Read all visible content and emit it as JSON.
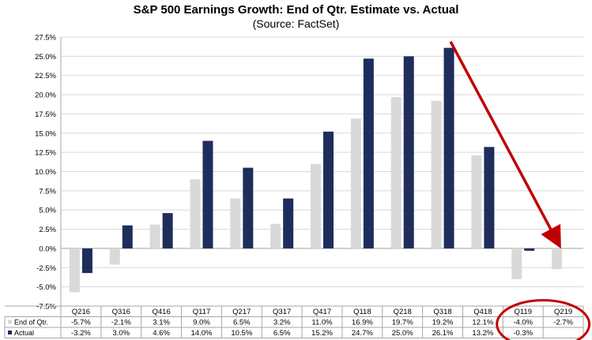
{
  "chart_data": {
    "type": "bar",
    "title": "S&P 500 Earnings Growth: End of Qtr. Estimate vs. Actual",
    "subtitle": "(Source: FactSet)",
    "categories": [
      "Q216",
      "Q316",
      "Q416",
      "Q117",
      "Q217",
      "Q317",
      "Q417",
      "Q118",
      "Q218",
      "Q318",
      "Q418",
      "Q119",
      "Q219"
    ],
    "series": [
      {
        "name": "End of Qtr.",
        "color": "#d9d9d9",
        "values": [
          -5.7,
          -2.1,
          3.1,
          9.0,
          6.5,
          3.2,
          11.0,
          16.9,
          19.7,
          19.2,
          12.1,
          -4.0,
          -2.7
        ],
        "labels": [
          "-5.7%",
          "-2.1%",
          "3.1%",
          "9.0%",
          "6.5%",
          "3.2%",
          "11.0%",
          "16.9%",
          "19.7%",
          "19.2%",
          "12.1%",
          "-4.0%",
          "-2.7%"
        ]
      },
      {
        "name": "Actual",
        "color": "#1f2d5c",
        "values": [
          -3.2,
          3.0,
          4.6,
          14.0,
          10.5,
          6.5,
          15.2,
          24.7,
          25.0,
          26.1,
          13.2,
          -0.3,
          null
        ],
        "labels": [
          "-3.2%",
          "3.0%",
          "4.6%",
          "14.0%",
          "10.5%",
          "6.5%",
          "15.2%",
          "24.7%",
          "25.0%",
          "26.1%",
          "13.2%",
          "-0.3%",
          ""
        ]
      }
    ],
    "ylim": [
      -7.5,
      27.5
    ],
    "yticks": [
      "27.5%",
      "25.0%",
      "22.5%",
      "20.0%",
      "17.5%",
      "15.0%",
      "12.5%",
      "10.0%",
      "7.5%",
      "5.0%",
      "2.5%",
      "0.0%",
      "-2.5%",
      "-5.0%",
      "-7.5%"
    ],
    "grid": true,
    "legend": "data-table-below",
    "annotations": [
      {
        "type": "arrow",
        "color": "#c00000",
        "from": "Q318 Actual bar top",
        "to": "Q219"
      },
      {
        "type": "ellipse",
        "color": "#c00000",
        "around": "Q119 and Q219 table columns"
      }
    ]
  }
}
